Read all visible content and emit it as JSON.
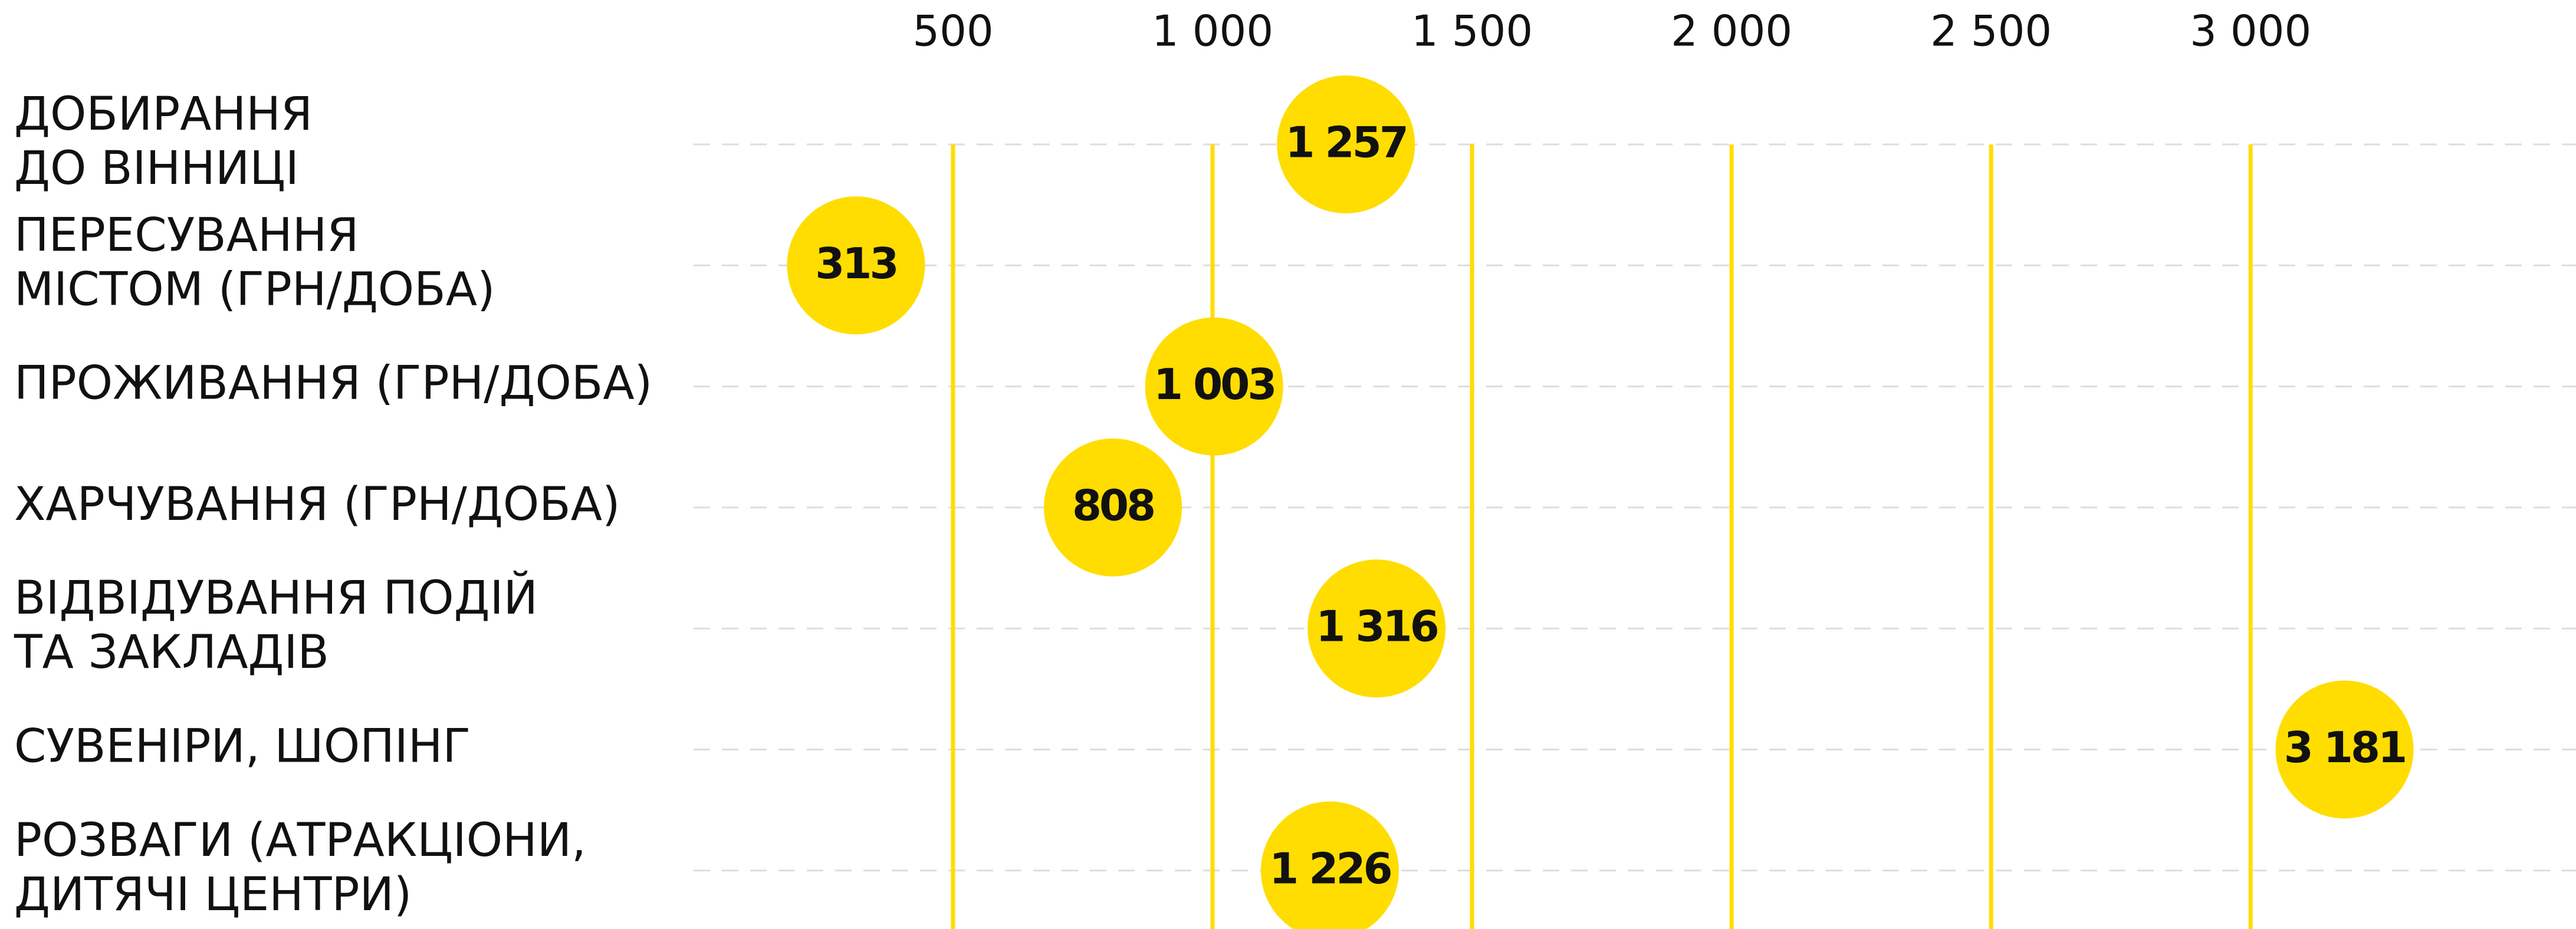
{
  "chart_data": {
    "type": "dot",
    "categories": [
      "ДОБИРАННЯ\nДО ВІННИЦІ",
      "ПЕРЕСУВАННЯ\nМІСТОМ (ГРН/ДОБА)",
      "ПРОЖИВАННЯ (ГРН/ДОБА)",
      "ХАРЧУВАННЯ (ГРН/ДОБА)",
      "ВІДВІДУВАННЯ ПОДІЙ\nТА ЗАКЛАДІВ",
      "СУВЕНІРИ, ШОПІНГ",
      "РОЗВАГИ (АТРАКЦІОНИ,\nДИТЯЧІ ЦЕНТРИ)"
    ],
    "values": [
      1257,
      313,
      1003,
      808,
      1316,
      3181,
      1226
    ],
    "value_labels": [
      "1 257",
      "313",
      "1 003",
      "808",
      "1 316",
      "3 181",
      "1 226"
    ],
    "color": "#ffdd00",
    "xlim": [
      0,
      3627
    ],
    "xticks": [
      500,
      {
        "value": 1000,
        "label": "1 000"
      },
      {
        "value": 1500,
        "label": "1 500"
      },
      {
        "value": 2000,
        "label": "2 000"
      },
      {
        "value": 2500,
        "label": "2 500"
      },
      {
        "value": 3000,
        "label": "3 000"
      }
    ],
    "grid": true
  }
}
